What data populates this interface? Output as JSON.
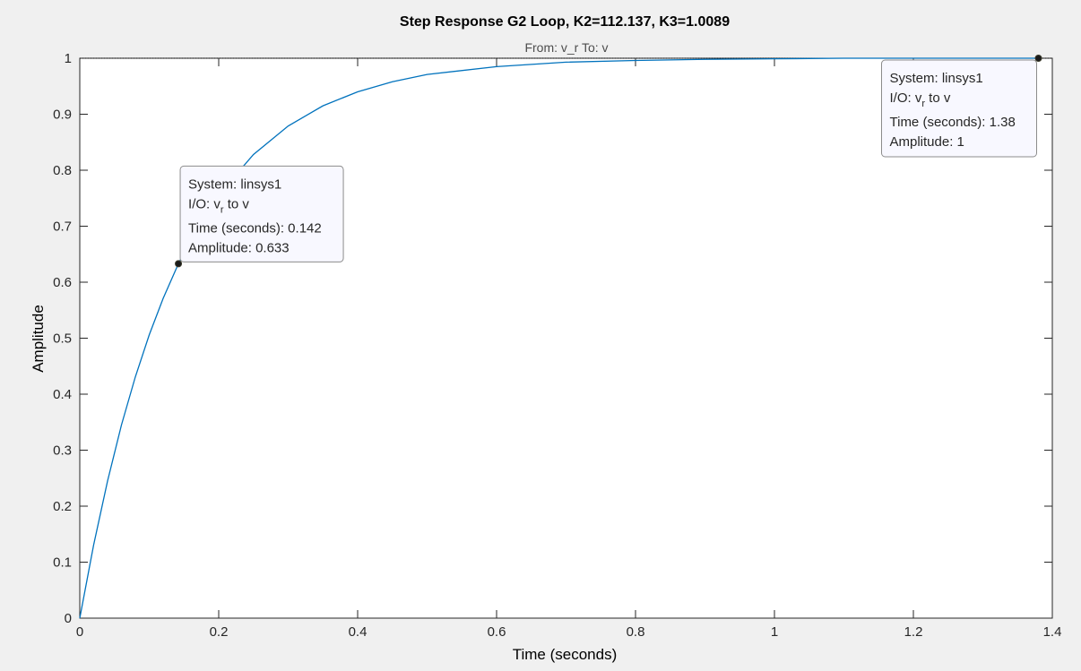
{
  "chart_data": {
    "type": "line",
    "title": "Step Response G2 Loop, K2=112.137, K3=1.0089",
    "subtitle": "From: v_r  To: v",
    "xlabel": "Time (seconds)",
    "ylabel": "Amplitude",
    "xlim": [
      0,
      1.4
    ],
    "ylim": [
      0,
      1
    ],
    "xticks": [
      "0",
      "0.2",
      "0.4",
      "0.6",
      "0.8",
      "1",
      "1.2",
      "1.4"
    ],
    "yticks": [
      "0",
      "0.1",
      "0.2",
      "0.3",
      "0.4",
      "0.5",
      "0.6",
      "0.7",
      "0.8",
      "0.9",
      "1"
    ],
    "grid": false,
    "reference_line": 1,
    "series": [
      {
        "color": "#0072bd",
        "x": [
          0,
          0.02,
          0.04,
          0.06,
          0.08,
          0.1,
          0.12,
          0.142,
          0.16,
          0.18,
          0.2,
          0.25,
          0.3,
          0.35,
          0.4,
          0.45,
          0.5,
          0.6,
          0.7,
          0.8,
          0.9,
          1.0,
          1.1,
          1.2,
          1.3,
          1.38
        ],
        "y": [
          0,
          0.131,
          0.245,
          0.345,
          0.431,
          0.506,
          0.571,
          0.633,
          0.676,
          0.719,
          0.756,
          0.828,
          0.879,
          0.915,
          0.94,
          0.958,
          0.971,
          0.985,
          0.993,
          0.996,
          0.998,
          0.999,
          1.0,
          1.0,
          1.0,
          1.0
        ]
      }
    ],
    "datatips": [
      {
        "x": 0.142,
        "y": 0.633,
        "system": "System: linsys1",
        "io_prefix": "I/O: v",
        "io_sub": "r",
        "io_suffix": " to v",
        "time": "Time (seconds): 0.142",
        "amplitude": "Amplitude: 0.633"
      },
      {
        "x": 1.38,
        "y": 1,
        "system": "System: linsys1",
        "io_prefix": "I/O: v",
        "io_sub": "r",
        "io_suffix": " to v",
        "time": "Time (seconds): 1.38",
        "amplitude": "Amplitude: 1"
      }
    ]
  }
}
